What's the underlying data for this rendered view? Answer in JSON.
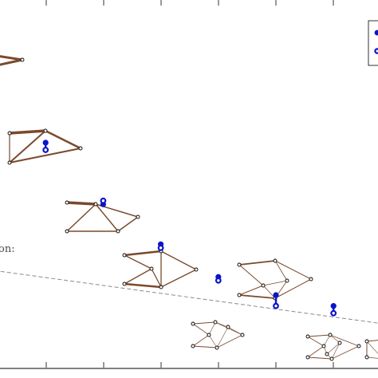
{
  "chart_data": {
    "type": "scatter",
    "annotation": "on:",
    "x": [
      1,
      2,
      3,
      4,
      5,
      6
    ],
    "series": [
      {
        "marker": "filled",
        "values": [
          0.62,
          0.45,
          0.34,
          0.25,
          0.2,
          0.17
        ]
      },
      {
        "marker": "open",
        "values": [
          0.6,
          0.46,
          0.33,
          0.24,
          0.17,
          0.15
        ]
      }
    ],
    "trend": {
      "style": "dashed",
      "from": [
        0,
        0.27
      ],
      "to": [
        6.9,
        0.12
      ]
    },
    "colors": {
      "markers": "#0b14c8",
      "graph_edges": "#7a4a2c",
      "trend_line": "#8a8a8a"
    }
  }
}
